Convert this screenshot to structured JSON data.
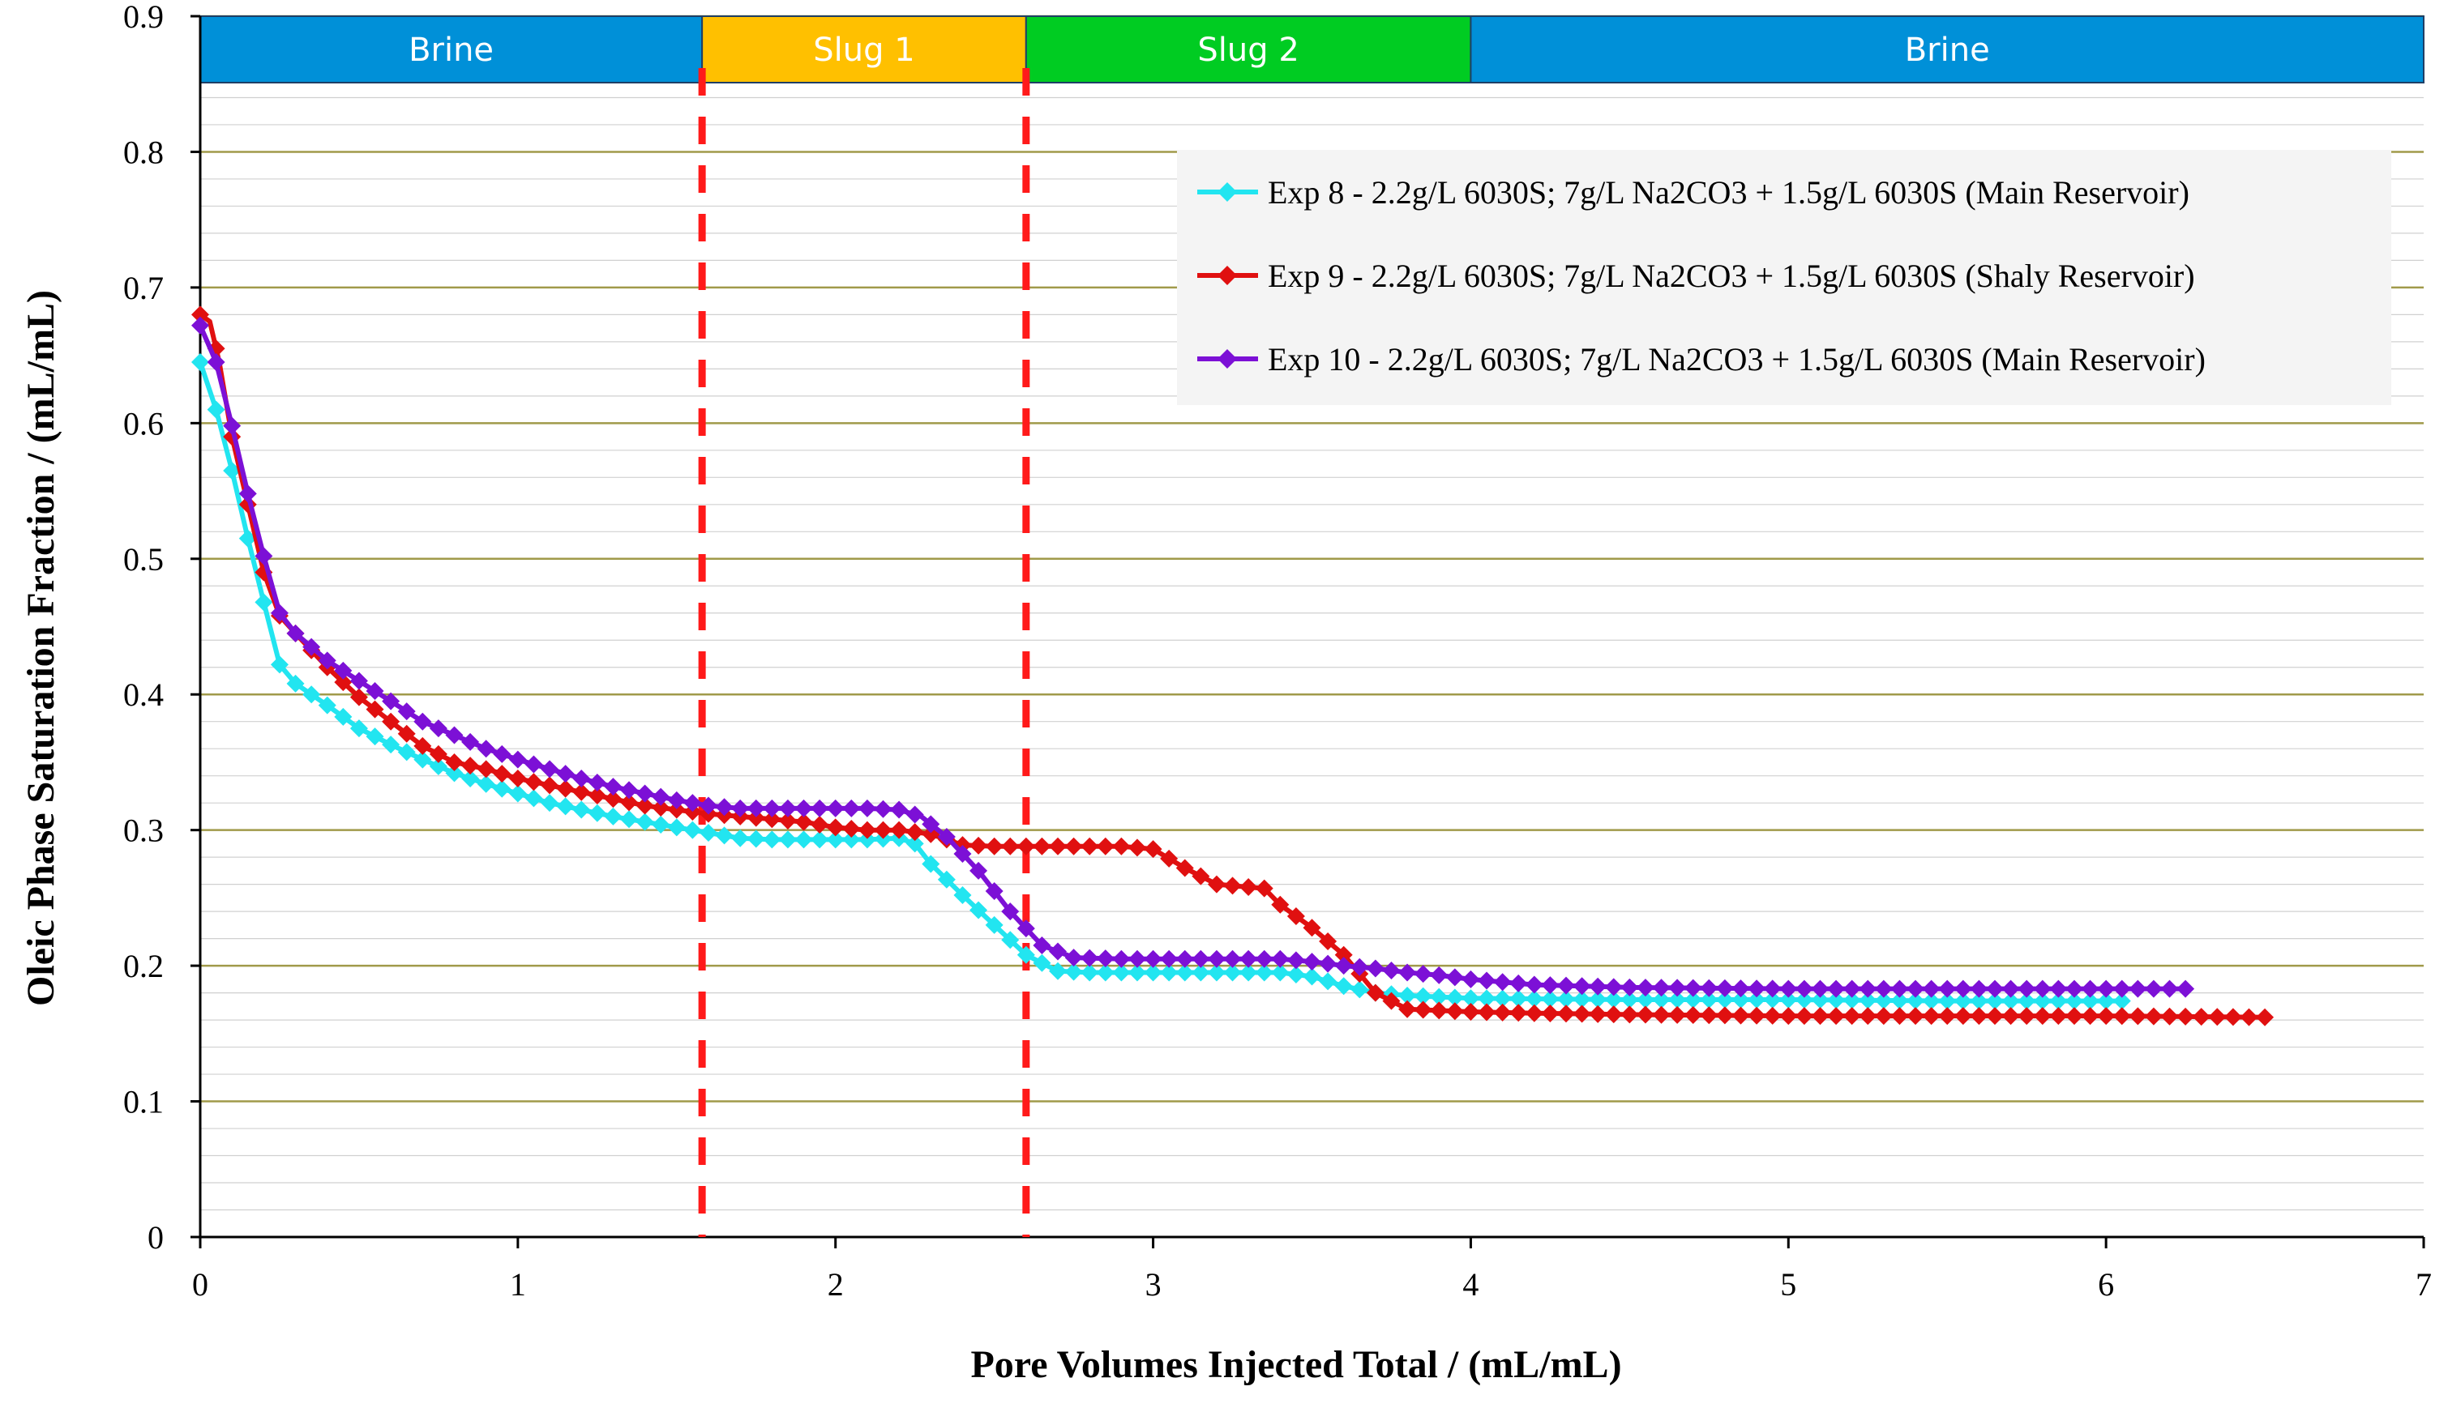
{
  "chart_data": {
    "type": "line",
    "xlabel": "Pore Volumes Injected Total / (mL/mL)",
    "ylabel": "Oleic Phase Saturation Fraction / (mL/mL)",
    "xlim": [
      0,
      7
    ],
    "ylim": [
      0,
      0.9
    ],
    "x_ticks": [
      "0",
      "1",
      "2",
      "3",
      "4",
      "5",
      "6",
      "7"
    ],
    "y_ticks": [
      "0",
      "0.1",
      "0.2",
      "0.3",
      "0.4",
      "0.5",
      "0.6",
      "0.7",
      "0.8",
      "0.9"
    ],
    "grid": "horizontal major and minor",
    "legend_position": "top-right",
    "phases": [
      {
        "label": "Brine",
        "x_start": 0,
        "x_end": 1.58,
        "color": "#0090d8"
      },
      {
        "label": "Slug 1",
        "x_start": 1.58,
        "x_end": 2.6,
        "color": "#ffc000"
      },
      {
        "label": "Slug 2",
        "x_start": 2.6,
        "x_end": 4.0,
        "color": "#00cc22"
      },
      {
        "label": "Brine",
        "x_start": 4.0,
        "x_end": 7.0,
        "color": "#0090d8"
      }
    ],
    "vertical_markers": [
      1.58,
      2.6
    ],
    "series": [
      {
        "name": "Exp 8 - 2.2g/L 6030S; 7g/L Na2CO3 + 1.5g/L 6030S (Main Reservoir)",
        "color": "#22e5f0",
        "points": [
          [
            0,
            0.645
          ],
          [
            0.05,
            0.61
          ],
          [
            0.1,
            0.565
          ],
          [
            0.15,
            0.515
          ],
          [
            0.2,
            0.468
          ],
          [
            0.25,
            0.422
          ],
          [
            0.3,
            0.408
          ],
          [
            0.4,
            0.392
          ],
          [
            0.5,
            0.375
          ],
          [
            0.6,
            0.363
          ],
          [
            0.7,
            0.352
          ],
          [
            0.8,
            0.342
          ],
          [
            0.9,
            0.334
          ],
          [
            1.0,
            0.327
          ],
          [
            1.1,
            0.32
          ],
          [
            1.2,
            0.315
          ],
          [
            1.3,
            0.31
          ],
          [
            1.4,
            0.306
          ],
          [
            1.5,
            0.302
          ],
          [
            1.6,
            0.298
          ],
          [
            1.7,
            0.294
          ],
          [
            1.8,
            0.293
          ],
          [
            1.9,
            0.293
          ],
          [
            2.0,
            0.293
          ],
          [
            2.1,
            0.293
          ],
          [
            2.2,
            0.294
          ],
          [
            2.25,
            0.29
          ],
          [
            2.3,
            0.275
          ],
          [
            2.4,
            0.252
          ],
          [
            2.5,
            0.23
          ],
          [
            2.6,
            0.208
          ],
          [
            2.7,
            0.196
          ],
          [
            2.8,
            0.195
          ],
          [
            2.9,
            0.195
          ],
          [
            3.0,
            0.195
          ],
          [
            3.1,
            0.195
          ],
          [
            3.2,
            0.195
          ],
          [
            3.3,
            0.195
          ],
          [
            3.4,
            0.195
          ],
          [
            3.5,
            0.192
          ],
          [
            3.6,
            0.185
          ],
          [
            3.7,
            0.18
          ],
          [
            3.8,
            0.178
          ],
          [
            3.9,
            0.177
          ],
          [
            4.0,
            0.176
          ],
          [
            4.5,
            0.175
          ],
          [
            5.0,
            0.175
          ],
          [
            5.5,
            0.174
          ],
          [
            6.0,
            0.174
          ],
          [
            6.05,
            0.174
          ]
        ]
      },
      {
        "name": "Exp 9 - 2.2g/L 6030S; 7g/L Na2CO3 + 1.5g/L 6030S (Shaly Reservoir)",
        "color": "#e01010",
        "points": [
          [
            0,
            0.68
          ],
          [
            0.03,
            0.675
          ],
          [
            0.06,
            0.645
          ],
          [
            0.1,
            0.59
          ],
          [
            0.15,
            0.54
          ],
          [
            0.2,
            0.49
          ],
          [
            0.25,
            0.458
          ],
          [
            0.3,
            0.445
          ],
          [
            0.4,
            0.42
          ],
          [
            0.5,
            0.398
          ],
          [
            0.6,
            0.38
          ],
          [
            0.7,
            0.362
          ],
          [
            0.8,
            0.35
          ],
          [
            0.9,
            0.345
          ],
          [
            1.0,
            0.338
          ],
          [
            1.1,
            0.333
          ],
          [
            1.2,
            0.328
          ],
          [
            1.3,
            0.323
          ],
          [
            1.4,
            0.318
          ],
          [
            1.5,
            0.315
          ],
          [
            1.6,
            0.312
          ],
          [
            1.7,
            0.31
          ],
          [
            1.8,
            0.308
          ],
          [
            1.9,
            0.306
          ],
          [
            2.0,
            0.302
          ],
          [
            2.1,
            0.3
          ],
          [
            2.2,
            0.3
          ],
          [
            2.3,
            0.297
          ],
          [
            2.4,
            0.289
          ],
          [
            2.5,
            0.288
          ],
          [
            2.6,
            0.288
          ],
          [
            2.7,
            0.288
          ],
          [
            2.8,
            0.288
          ],
          [
            2.9,
            0.288
          ],
          [
            3.0,
            0.286
          ],
          [
            3.1,
            0.272
          ],
          [
            3.2,
            0.26
          ],
          [
            3.3,
            0.258
          ],
          [
            3.35,
            0.257
          ],
          [
            3.4,
            0.245
          ],
          [
            3.5,
            0.228
          ],
          [
            3.6,
            0.208
          ],
          [
            3.7,
            0.18
          ],
          [
            3.8,
            0.168
          ],
          [
            3.9,
            0.167
          ],
          [
            4.0,
            0.166
          ],
          [
            4.2,
            0.165
          ],
          [
            4.5,
            0.164
          ],
          [
            5.0,
            0.163
          ],
          [
            5.5,
            0.163
          ],
          [
            6.0,
            0.163
          ],
          [
            6.5,
            0.162
          ]
        ]
      },
      {
        "name": "Exp 10 - 2.2g/L 6030S; 7g/L Na2CO3 + 1.5g/L 6030S (Main Reservoir)",
        "color": "#7c10d6",
        "points": [
          [
            0,
            0.672
          ],
          [
            0.05,
            0.645
          ],
          [
            0.1,
            0.598
          ],
          [
            0.15,
            0.548
          ],
          [
            0.2,
            0.502
          ],
          [
            0.25,
            0.46
          ],
          [
            0.3,
            0.445
          ],
          [
            0.4,
            0.425
          ],
          [
            0.5,
            0.41
          ],
          [
            0.6,
            0.395
          ],
          [
            0.7,
            0.38
          ],
          [
            0.8,
            0.37
          ],
          [
            0.9,
            0.36
          ],
          [
            1.0,
            0.352
          ],
          [
            1.1,
            0.345
          ],
          [
            1.2,
            0.338
          ],
          [
            1.3,
            0.332
          ],
          [
            1.4,
            0.327
          ],
          [
            1.5,
            0.322
          ],
          [
            1.6,
            0.318
          ],
          [
            1.7,
            0.316
          ],
          [
            1.8,
            0.316
          ],
          [
            1.9,
            0.316
          ],
          [
            2.0,
            0.316
          ],
          [
            2.1,
            0.316
          ],
          [
            2.2,
            0.315
          ],
          [
            2.27,
            0.31
          ],
          [
            2.35,
            0.295
          ],
          [
            2.45,
            0.27
          ],
          [
            2.55,
            0.24
          ],
          [
            2.65,
            0.215
          ],
          [
            2.75,
            0.206
          ],
          [
            2.9,
            0.205
          ],
          [
            3.0,
            0.205
          ],
          [
            3.2,
            0.205
          ],
          [
            3.4,
            0.205
          ],
          [
            3.5,
            0.203
          ],
          [
            3.6,
            0.2
          ],
          [
            3.7,
            0.198
          ],
          [
            3.8,
            0.195
          ],
          [
            3.9,
            0.193
          ],
          [
            4.0,
            0.19
          ],
          [
            4.2,
            0.186
          ],
          [
            4.5,
            0.184
          ],
          [
            5.0,
            0.183
          ],
          [
            5.5,
            0.183
          ],
          [
            6.0,
            0.183
          ],
          [
            6.25,
            0.183
          ]
        ]
      }
    ]
  }
}
